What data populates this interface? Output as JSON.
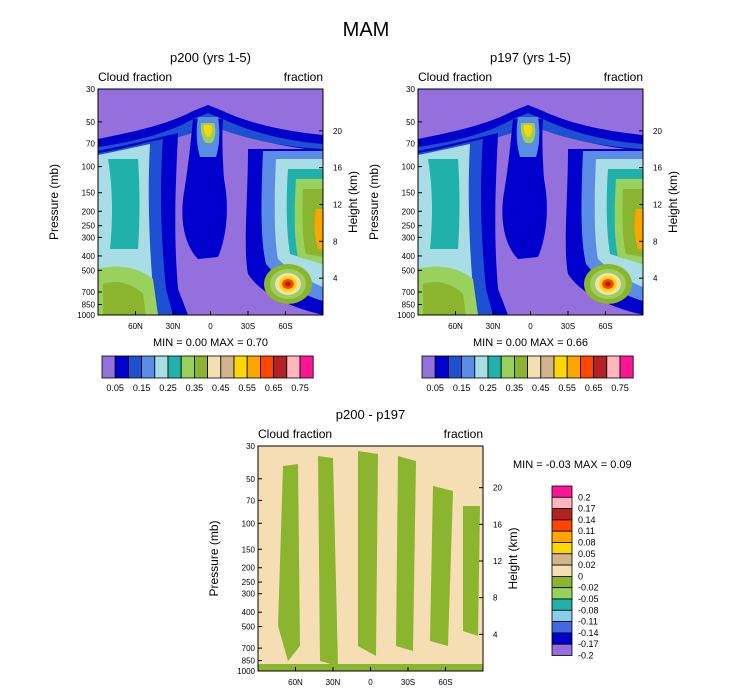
{
  "figure_title": "MAM",
  "colors": {
    "fill": [
      "#9370db",
      "#0000cd",
      "#1e50d2",
      "#5a8ce6",
      "#a8dde6",
      "#20b2aa",
      "#99d15d",
      "#8bb52f",
      "#f5deb3",
      "#d2b48c",
      "#ffd700",
      "#ffa500",
      "#ff4500",
      "#b22222",
      "#ffb6c1",
      "#ff1493"
    ],
    "diff_fill": [
      "#9370db",
      "#0000cd",
      "#4169e1",
      "#87ceeb",
      "#20b2aa",
      "#99d15d",
      "#8bb52f",
      "#f5deb3",
      "#d2b48c",
      "#ffd700",
      "#ffa500",
      "#ff4500",
      "#b22222",
      "#ffb6c1",
      "#ff1493"
    ]
  },
  "chart_data": [
    {
      "type": "heatmap",
      "title": "p200 (yrs 1-5)",
      "left_label": "Cloud fraction",
      "right_label": "fraction",
      "ylabel": "Pressure (mb)",
      "ylabel_right": "Height (km)",
      "x_ticks": [
        "60N",
        "30N",
        "0",
        "30S",
        "60S"
      ],
      "x_values": [
        60,
        30,
        0,
        -30,
        -60
      ],
      "xlim": [
        90,
        -90
      ],
      "pressure_ticks": [
        "30",
        "50",
        "70",
        "100",
        "150",
        "200",
        "250",
        "300",
        "400",
        "500",
        "700",
        "850",
        "1000"
      ],
      "pressure_values": [
        30,
        50,
        70,
        100,
        150,
        200,
        250,
        300,
        400,
        500,
        700,
        850,
        1000
      ],
      "height_ticks": [
        "20",
        "16",
        "12",
        "8",
        "4"
      ],
      "height_values": [
        20,
        16,
        12,
        8,
        4
      ],
      "min_max_text": "MIN =   0.00   MAX =   0.70",
      "min": 0.0,
      "max": 0.7,
      "colorbar_labels": [
        "0.05",
        "0.15",
        "0.25",
        "0.35",
        "0.45",
        "0.55",
        "0.65",
        "0.75"
      ]
    },
    {
      "type": "heatmap",
      "title": "p197 (yrs 1-5)",
      "left_label": "Cloud fraction",
      "right_label": "fraction",
      "ylabel": "Pressure (mb)",
      "ylabel_right": "Height (km)",
      "x_ticks": [
        "60N",
        "30N",
        "0",
        "30S",
        "60S"
      ],
      "x_values": [
        60,
        30,
        0,
        -30,
        -60
      ],
      "xlim": [
        90,
        -90
      ],
      "pressure_ticks": [
        "30",
        "50",
        "70",
        "100",
        "150",
        "200",
        "250",
        "300",
        "400",
        "500",
        "700",
        "850",
        "1000"
      ],
      "pressure_values": [
        30,
        50,
        70,
        100,
        150,
        200,
        250,
        300,
        400,
        500,
        700,
        850,
        1000
      ],
      "height_ticks": [
        "20",
        "16",
        "12",
        "8",
        "4"
      ],
      "height_values": [
        20,
        16,
        12,
        8,
        4
      ],
      "min_max_text": "MIN =   0.00   MAX =   0.66",
      "min": 0.0,
      "max": 0.66,
      "colorbar_labels": [
        "0.05",
        "0.15",
        "0.25",
        "0.35",
        "0.45",
        "0.55",
        "0.65",
        "0.75"
      ]
    },
    {
      "type": "heatmap",
      "title": "p200 - p197",
      "left_label": "Cloud fraction",
      "right_label": "fraction",
      "ylabel": "Pressure (mb)",
      "ylabel_right": "Height (km)",
      "x_ticks": [
        "60N",
        "30N",
        "0",
        "30S",
        "60S"
      ],
      "x_values": [
        60,
        30,
        0,
        -30,
        -60
      ],
      "xlim": [
        90,
        -90
      ],
      "pressure_ticks": [
        "30",
        "50",
        "70",
        "100",
        "150",
        "200",
        "250",
        "300",
        "400",
        "500",
        "700",
        "850",
        "1000"
      ],
      "pressure_values": [
        30,
        50,
        70,
        100,
        150,
        200,
        250,
        300,
        400,
        500,
        700,
        850,
        1000
      ],
      "height_ticks": [
        "20",
        "16",
        "12",
        "8",
        "4"
      ],
      "height_values": [
        20,
        16,
        12,
        8,
        4
      ],
      "min_max_text": "MIN =   -0.03   MAX =   0.09",
      "min": -0.03,
      "max": 0.09,
      "colorbar_labels": [
        "0.2",
        "0.17",
        "0.14",
        "0.11",
        "0.08",
        "0.05",
        "0.02",
        "0",
        "-0.02",
        "-0.05",
        "-0.08",
        "-0.11",
        "-0.14",
        "-0.17",
        "-0.2"
      ]
    }
  ]
}
